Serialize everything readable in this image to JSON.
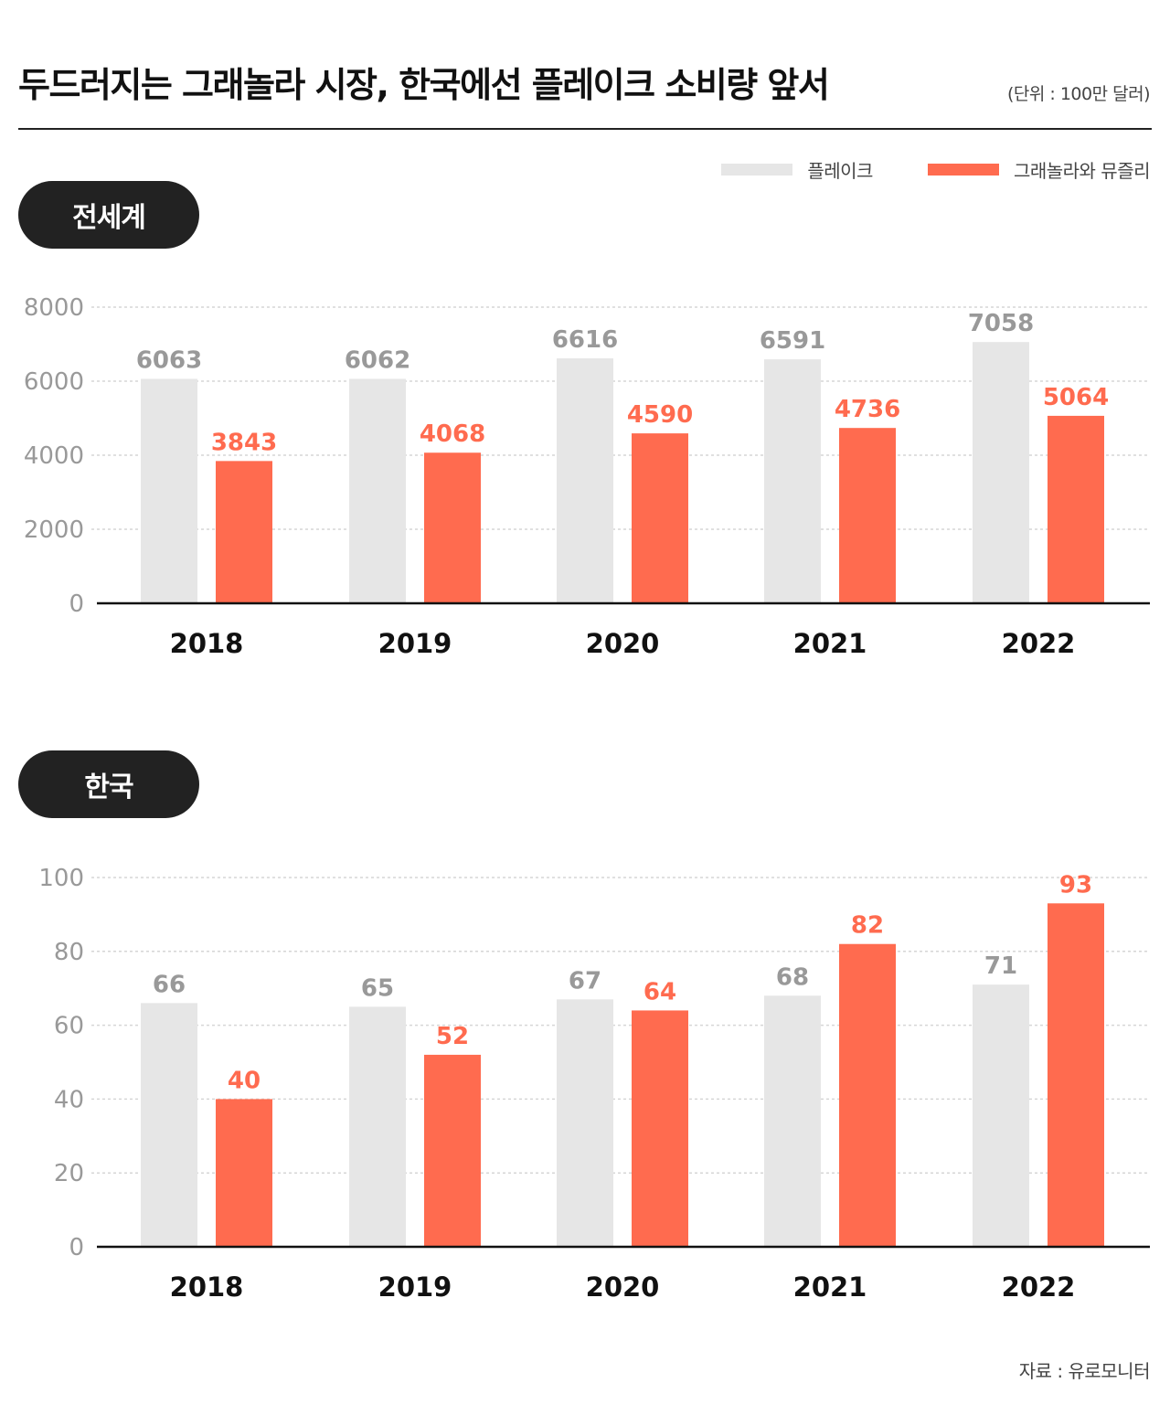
{
  "header": {
    "title": "두드러지는 그래놀라 시장, 한국에선 플레이크 소비량 앞서",
    "unit": "(단위 : 100만 달러)"
  },
  "legend": [
    {
      "label": "플레이크",
      "color": "#e6e6e6"
    },
    {
      "label": "그래놀라와 뮤즐리",
      "color": "#ff6b4f"
    }
  ],
  "sections": {
    "world": {
      "label": "전세계"
    },
    "korea": {
      "label": "한국"
    }
  },
  "source": "자료 : 유로모니터",
  "chart_data": [
    {
      "type": "bar",
      "title": "전세계",
      "categories": [
        "2018",
        "2019",
        "2020",
        "2021",
        "2022"
      ],
      "series": [
        {
          "name": "플레이크",
          "color": "#e6e6e6",
          "label_color": "#999999",
          "values": [
            6063,
            6062,
            6616,
            6591,
            7058
          ]
        },
        {
          "name": "그래놀라와 뮤즐리",
          "color": "#ff6b4f",
          "label_color": "#ff6b4f",
          "values": [
            3843,
            4068,
            4590,
            4736,
            5064
          ]
        }
      ],
      "ylim": [
        0,
        8000
      ],
      "yticks": [
        0,
        2000,
        4000,
        6000,
        8000
      ],
      "xlabel": "",
      "ylabel": "",
      "grid": true
    },
    {
      "type": "bar",
      "title": "한국",
      "categories": [
        "2018",
        "2019",
        "2020",
        "2021",
        "2022"
      ],
      "series": [
        {
          "name": "플레이크",
          "color": "#e6e6e6",
          "label_color": "#999999",
          "values": [
            66,
            65,
            67,
            68,
            71
          ]
        },
        {
          "name": "그래놀라와 뮤즐리",
          "color": "#ff6b4f",
          "label_color": "#ff6b4f",
          "values": [
            40,
            52,
            64,
            82,
            93
          ]
        }
      ],
      "ylim": [
        0,
        100
      ],
      "yticks": [
        0,
        20,
        40,
        60,
        80,
        100
      ],
      "xlabel": "",
      "ylabel": "",
      "grid": true
    }
  ]
}
